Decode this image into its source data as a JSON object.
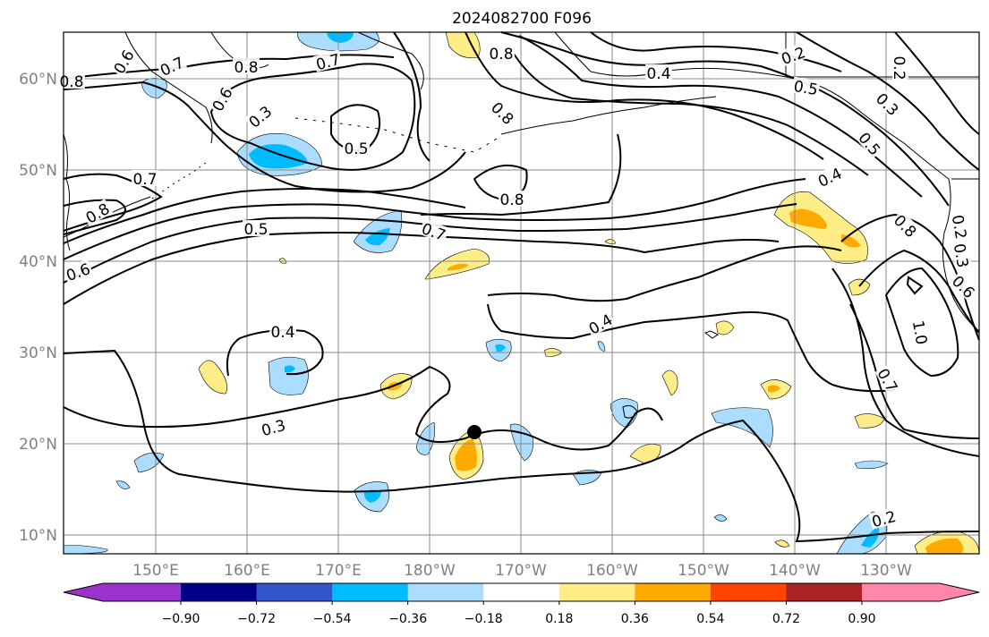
{
  "map": {
    "title": "2024082700 F096",
    "lon_labels": [
      "150°E",
      "160°E",
      "170°E",
      "180°W",
      "170°W",
      "160°W",
      "150°W",
      "140°W",
      "130°W"
    ],
    "lat_labels": [
      "10°N",
      "20°N",
      "30°N",
      "40°N",
      "50°N",
      "60°N"
    ],
    "colorbar": {
      "tick_labels": [
        "−0.90",
        "−0.72",
        "−0.54",
        "−0.36",
        "−0.18",
        "0.18",
        "0.36",
        "0.54",
        "0.72",
        "0.90"
      ],
      "colors": [
        "#9933cc",
        "#000088",
        "#3355cc",
        "#00bbff",
        "#aaddff",
        "#ffffff",
        "#ffee88",
        "#ffaa00",
        "#ff4400",
        "#aa2222",
        "#ff88aa"
      ]
    },
    "contour_labels": [
      "0.6",
      "0.7",
      "0.8",
      "0.7",
      "0.6",
      "0.3",
      "0.5",
      "0.8",
      "0.8",
      "0.4",
      "0.2",
      "0.5",
      "0.3",
      "0.5",
      "0.4",
      "0.7",
      "0.8",
      "0.5",
      "0.7",
      "0.8",
      "0.6",
      "0.4",
      "0.4",
      "0.3",
      "0.2",
      "1.0",
      "0.7",
      "0.8",
      "0.2",
      "0.3",
      "0.6",
      "0.2",
      "0.2",
      "0.8"
    ],
    "marker_label": "storm-position-marker",
    "fill_colors": {
      "pos_weak": "#ffee88",
      "pos_mid": "#ffaa00",
      "neg_weak": "#aaddff",
      "neg_mid": "#00bbff",
      "coast": "#000000",
      "grid": "#888888"
    }
  }
}
